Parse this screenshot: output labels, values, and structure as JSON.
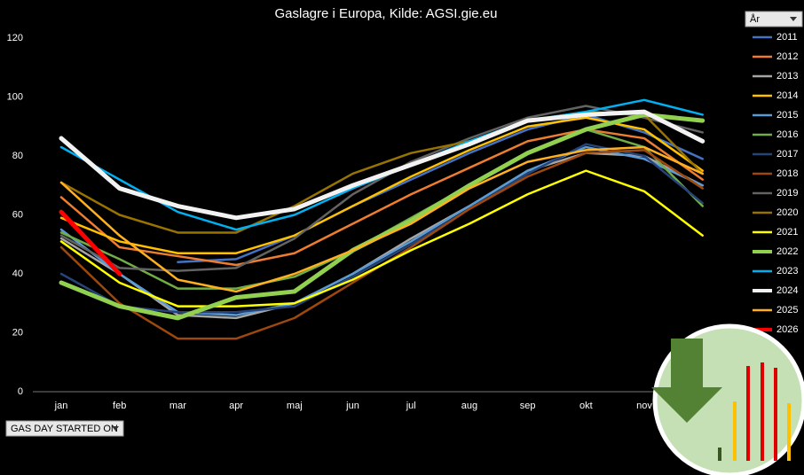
{
  "chart_data": {
    "type": "line",
    "title": "Gaslagre i Europa, Kilde: AGSI.gie.eu",
    "legend_filter": "År",
    "axis_field_button": "GAS DAY STARTED ON",
    "categories": [
      "jan",
      "feb",
      "mar",
      "apr",
      "maj",
      "jun",
      "jul",
      "aug",
      "sep",
      "okt",
      "nov",
      null
    ],
    "ylim": [
      0,
      120
    ],
    "yticks": [
      0,
      20,
      40,
      60,
      80,
      100,
      120
    ],
    "grid": false,
    "legend": "right",
    "series": [
      {
        "name": "2011",
        "color": "#4472c4",
        "line_width": 2.5,
        "values": [
          null,
          null,
          44,
          45,
          53,
          63,
          72,
          81,
          89,
          94,
          88,
          79
        ]
      },
      {
        "name": "2012",
        "color": "#ed7d31",
        "line_width": 2.5,
        "values": [
          66,
          49,
          46,
          43,
          47,
          57,
          67,
          76,
          85,
          89,
          86,
          72
        ]
      },
      {
        "name": "2013",
        "color": "#a5a5a5",
        "line_width": 2.5,
        "values": [
          52,
          40,
          26,
          25,
          30,
          40,
          52,
          63,
          75,
          81,
          80,
          70
        ]
      },
      {
        "name": "2014",
        "color": "#ffc000",
        "line_width": 2.5,
        "values": [
          59,
          51,
          47,
          47,
          53,
          63,
          73,
          82,
          90,
          93,
          89,
          75
        ]
      },
      {
        "name": "2015",
        "color": "#5b9bd5",
        "line_width": 2.5,
        "values": [
          55,
          40,
          27,
          26,
          30,
          40,
          51,
          63,
          75,
          83,
          79,
          70
        ]
      },
      {
        "name": "2016",
        "color": "#70ad47",
        "line_width": 2.5,
        "values": [
          54,
          45,
          35,
          35,
          39,
          48,
          59,
          70,
          81,
          89,
          83,
          63
        ]
      },
      {
        "name": "2017",
        "color": "#264478",
        "line_width": 2.5,
        "values": [
          40,
          29,
          27,
          27,
          29,
          39,
          50,
          62,
          74,
          84,
          80,
          64
        ]
      },
      {
        "name": "2018",
        "color": "#9e480e",
        "line_width": 2.5,
        "values": [
          49,
          30,
          18,
          18,
          25,
          37,
          49,
          62,
          73,
          81,
          82,
          69
        ]
      },
      {
        "name": "2019",
        "color": "#636363",
        "line_width": 2.5,
        "values": [
          53,
          42,
          41,
          42,
          52,
          67,
          78,
          86,
          93,
          97,
          93,
          88
        ]
      },
      {
        "name": "2020",
        "color": "#997300",
        "line_width": 2.5,
        "values": [
          71,
          60,
          54,
          54,
          63,
          74,
          81,
          85,
          92,
          95,
          94,
          74
        ]
      },
      {
        "name": "2021",
        "color": "#ffff00",
        "line_width": 2.5,
        "values": [
          51,
          37,
          29,
          29,
          30,
          38,
          48,
          57,
          67,
          75,
          68,
          53
        ]
      },
      {
        "name": "2022",
        "color": "#92d050",
        "line_width": 5,
        "values": [
          37,
          29,
          25,
          32,
          34,
          48,
          58,
          70,
          81,
          89,
          94,
          92
        ]
      },
      {
        "name": "2023",
        "color": "#00b0f0",
        "line_width": 2.5,
        "values": [
          83,
          72,
          61,
          55,
          60,
          69,
          77,
          85,
          92,
          95,
          99,
          94
        ]
      },
      {
        "name": "2024",
        "color": "#f2f2f2",
        "line_width": 5,
        "values": [
          86,
          69,
          63,
          59,
          62,
          70,
          77,
          84,
          92,
          94,
          95,
          85
        ]
      },
      {
        "name": "2025",
        "color": "#ffb020",
        "line_width": 2.5,
        "values": [
          71,
          53,
          38,
          34,
          40,
          48,
          57,
          69,
          78,
          82,
          83,
          74
        ]
      },
      {
        "name": "2026",
        "color": "#ff0000",
        "line_width": 5,
        "values": [
          61,
          40,
          null,
          null,
          null,
          null,
          null,
          null,
          null,
          null,
          null,
          null
        ]
      }
    ]
  }
}
